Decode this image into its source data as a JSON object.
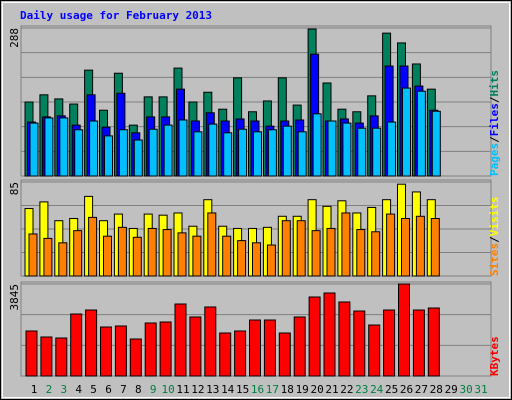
{
  "chart_data": [
    {
      "type": "bar",
      "title": "Daily usage for February 2013",
      "legend_separator": "/",
      "ylim": [
        0,
        288
      ],
      "yticks": [
        288
      ],
      "series": [
        {
          "name": "Hits",
          "color": "#00805c",
          "values": [
            144,
            158,
            150,
            140,
            206,
            128,
            200,
            99,
            154,
            154,
            210,
            144,
            163,
            130,
            191,
            125,
            146,
            191,
            138,
            286,
            181,
            130,
            125,
            156,
            278,
            259,
            218,
            169,
            null,
            null,
            null
          ]
        },
        {
          "name": "Files",
          "color": "#0000ff",
          "values": [
            105,
            115,
            117,
            99,
            158,
            95,
            161,
            84,
            115,
            115,
            169,
            107,
            123,
            107,
            111,
            107,
            97,
            107,
            109,
            237,
            107,
            111,
            103,
            117,
            214,
            214,
            175,
            128,
            null,
            null,
            null
          ]
        },
        {
          "name": "Pages",
          "color": "#00c0ff",
          "values": [
            103,
            113,
            113,
            90,
            107,
            78,
            90,
            70,
            91,
            99,
            109,
            86,
            101,
            84,
            91,
            86,
            90,
            97,
            86,
            121,
            107,
            103,
            93,
            93,
            105,
            171,
            165,
            126,
            null,
            null,
            null
          ]
        }
      ]
    },
    {
      "type": "bar",
      "legend_separator": "/",
      "ylim": [
        0,
        85
      ],
      "yticks": [
        85
      ],
      "series": [
        {
          "name": "Visits",
          "color": "#ffff00",
          "values": [
            61,
            67,
            50,
            52,
            72,
            50,
            56,
            43,
            56,
            55,
            57,
            45,
            69,
            45,
            43,
            43,
            44,
            54,
            54,
            69,
            63,
            68,
            57,
            62,
            69,
            83,
            76,
            69,
            null,
            null,
            null
          ]
        },
        {
          "name": "Sites",
          "color": "#ff8000",
          "values": [
            38,
            34,
            30,
            41,
            53,
            36,
            44,
            35,
            43,
            42,
            39,
            36,
            57,
            36,
            32,
            30,
            28,
            50,
            50,
            41,
            43,
            57,
            42,
            40,
            56,
            52,
            54,
            52,
            null,
            null,
            null
          ]
        }
      ]
    },
    {
      "type": "bar",
      "ylim": [
        0,
        3845
      ],
      "yticks": [
        3845
      ],
      "categories": [
        "1",
        "2",
        "3",
        "4",
        "5",
        "6",
        "7",
        "8",
        "9",
        "10",
        "11",
        "12",
        "13",
        "14",
        "15",
        "16",
        "17",
        "18",
        "19",
        "20",
        "21",
        "22",
        "23",
        "24",
        "25",
        "26",
        "27",
        "28",
        "29",
        "30",
        "31"
      ],
      "category_colors": [
        "#000000",
        "#008040",
        "#008040",
        "#000000",
        "#000000",
        "#000000",
        "#000000",
        "#000000",
        "#008040",
        "#008040",
        "#000000",
        "#000000",
        "#000000",
        "#000000",
        "#000000",
        "#008040",
        "#008040",
        "#000000",
        "#000000",
        "#000000",
        "#000000",
        "#000000",
        "#008040",
        "#008040",
        "#000000",
        "#000000",
        "#000000",
        "#000000",
        "#000000",
        "#008040",
        "#008040"
      ],
      "series": [
        {
          "name": "KBytes",
          "color": "#ff0000",
          "values": [
            1881,
            1630,
            1588,
            2591,
            2758,
            2048,
            2090,
            1546,
            2215,
            2257,
            3009,
            2466,
            2884,
            1797,
            1881,
            2340,
            2340,
            1797,
            2466,
            3302,
            3469,
            3093,
            2716,
            2131,
            2758,
            3845,
            2758,
            2842,
            null,
            null,
            null
          ]
        }
      ]
    }
  ]
}
